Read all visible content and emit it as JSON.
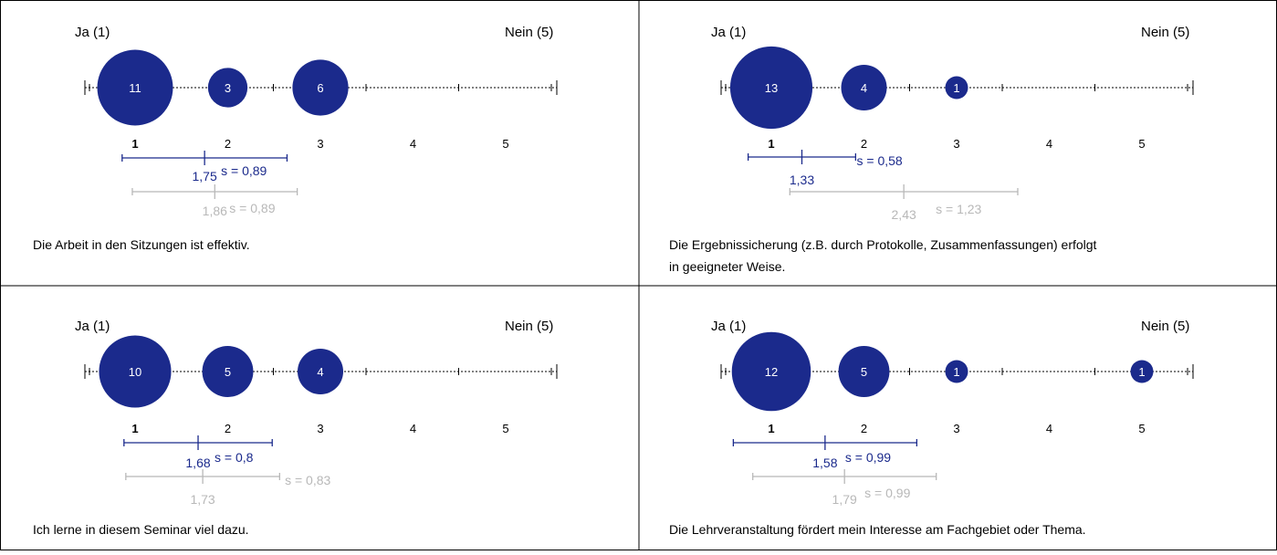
{
  "colors": {
    "primary": "#1b2a8c",
    "secondary": "#b8b8b8",
    "axis": "#000000",
    "border": "#000000"
  },
  "scale": {
    "left_label": "Ja (1)",
    "right_label": "Nein (5)",
    "ticks": [
      "1",
      "2",
      "3",
      "4",
      "5"
    ]
  },
  "chart_data": [
    {
      "type": "scatter",
      "question": "Die Arbeit in den Sitzungen ist effektiv.",
      "counts": [
        11,
        3,
        6,
        0,
        0
      ],
      "mean": {
        "value": 1.75,
        "label": "1,75",
        "sd": 0.89,
        "sd_label": "s = 0,89"
      },
      "comparison": {
        "value": 1.86,
        "label": "1,86",
        "sd": 0.89,
        "sd_label": "s = 0,89"
      }
    },
    {
      "type": "scatter",
      "question": "Die Ergebnissicherung (z.B. durch Protokolle, Zusammenfassungen) erfolgt in geeigneter Weise.",
      "counts": [
        13,
        4,
        1,
        0,
        0
      ],
      "mean": {
        "value": 1.33,
        "label": "1,33",
        "sd": 0.58,
        "sd_label": "s = 0,58"
      },
      "comparison": {
        "value": 2.43,
        "label": "2,43",
        "sd": 1.23,
        "sd_label": "s = 1,23"
      }
    },
    {
      "type": "scatter",
      "question": "Ich lerne in diesem Seminar viel dazu.",
      "counts": [
        10,
        5,
        4,
        0,
        0
      ],
      "mean": {
        "value": 1.68,
        "label": "1,68",
        "sd": 0.8,
        "sd_label": "s = 0,8"
      },
      "comparison": {
        "value": 1.73,
        "label": "1,73",
        "sd": 0.83,
        "sd_label": "s = 0,83"
      }
    },
    {
      "type": "scatter",
      "question": "Die Lehrveranstaltung fördert mein Interesse am Fachgebiet oder Thema.",
      "counts": [
        12,
        5,
        1,
        0,
        1
      ],
      "mean": {
        "value": 1.58,
        "label": "1,58",
        "sd": 0.99,
        "sd_label": "s = 0,99"
      },
      "comparison": {
        "value": 1.79,
        "label": "1,79",
        "sd": 0.99,
        "sd_label": "s = 0,99"
      }
    }
  ]
}
